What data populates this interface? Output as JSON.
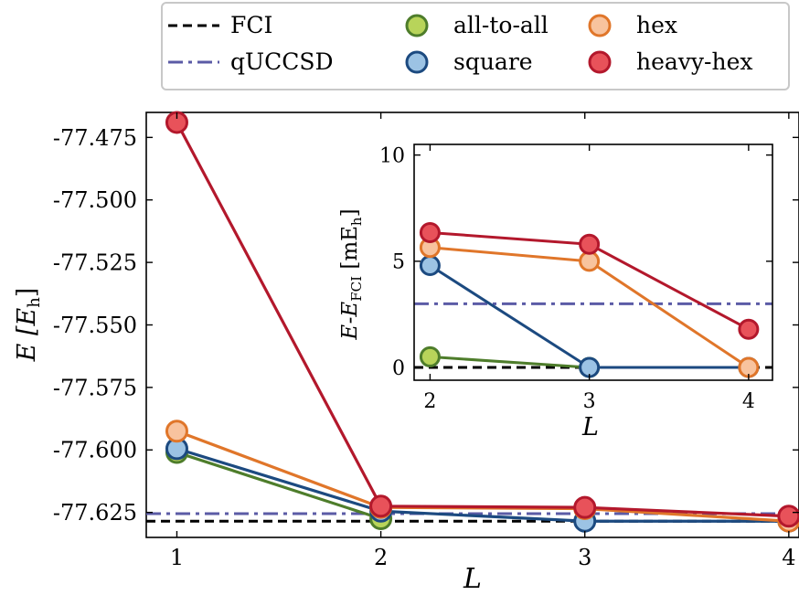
{
  "chart_data": [
    {
      "id": "main",
      "type": "line",
      "x": [
        1,
        2,
        3,
        4
      ],
      "xticks": [
        "1",
        "2",
        "3",
        "4"
      ],
      "yticks": [
        "-77.475",
        "-77.500",
        "-77.525",
        "-77.550",
        "-77.575",
        "-77.600",
        "-77.625"
      ],
      "xlabel": "L",
      "ylabel": "E [E",
      "ylabel_sub": "h",
      "ylabel_close": "]",
      "xlim": [
        0.85,
        4.05
      ],
      "ylim": [
        -77.635,
        -77.465
      ],
      "reference_lines": [
        {
          "name": "FCI",
          "value": -77.6285,
          "color": "#000000",
          "style": "dashed"
        },
        {
          "name": "qUCCSD",
          "value": -77.6255,
          "color": "#5b5ba6",
          "style": "dashdot"
        }
      ],
      "series": [
        {
          "name": "all-to-all",
          "x": [
            1,
            2
          ],
          "values": [
            -77.601,
            -77.6275
          ],
          "line_color": "#4e7d2b",
          "fill": "#b8d45a"
        },
        {
          "name": "square",
          "x": [
            1,
            2,
            3,
            4
          ],
          "values": [
            -77.5995,
            -77.6245,
            -77.6285,
            -77.6285
          ],
          "line_color": "#1c4a80",
          "fill": "#9cc3e4"
        },
        {
          "name": "hex",
          "x": [
            1,
            2,
            3,
            4
          ],
          "values": [
            -77.5925,
            -77.623,
            -77.6235,
            -77.6285
          ],
          "line_color": "#e0762a",
          "fill": "#f8c39e"
        },
        {
          "name": "heavy-hex",
          "x": [
            1,
            2,
            3,
            4
          ],
          "values": [
            -77.469,
            -77.6225,
            -77.623,
            -77.6265
          ],
          "line_color": "#b3182c",
          "fill": "#e8525a"
        }
      ],
      "grid": false
    },
    {
      "id": "inset",
      "type": "line",
      "x": [
        2,
        3,
        4
      ],
      "xticks": [
        "2",
        "3",
        "4"
      ],
      "yticks": [
        "0",
        "5",
        "10"
      ],
      "xlabel": "L",
      "ylabel": "E-E",
      "ylabel_sub": "FCI",
      "ylabel_rest": " [mE",
      "ylabel_sub2": "h",
      "ylabel_close": "]",
      "xlim": [
        1.9,
        4.15
      ],
      "ylim": [
        -0.6,
        10.5
      ],
      "reference_lines": [
        {
          "name": "FCI",
          "value": 0,
          "color": "#000000",
          "style": "dashed"
        },
        {
          "name": "qUCCSD",
          "value": 3.0,
          "color": "#5b5ba6",
          "style": "dashdot"
        }
      ],
      "series": [
        {
          "name": "all-to-all",
          "x": [
            2,
            3
          ],
          "values": [
            0.5,
            0.0
          ],
          "line_color": "#4e7d2b",
          "fill": "#b8d45a"
        },
        {
          "name": "square",
          "x": [
            2,
            3,
            4
          ],
          "values": [
            4.8,
            0.0,
            0.0
          ],
          "line_color": "#1c4a80",
          "fill": "#9cc3e4"
        },
        {
          "name": "hex",
          "x": [
            2,
            3,
            4
          ],
          "values": [
            5.65,
            5.0,
            0.0
          ],
          "line_color": "#e0762a",
          "fill": "#f8c39e"
        },
        {
          "name": "heavy-hex",
          "x": [
            2,
            3,
            4
          ],
          "values": [
            6.35,
            5.8,
            1.8
          ],
          "line_color": "#b3182c",
          "fill": "#e8525a"
        }
      ],
      "grid": false
    }
  ],
  "legend": {
    "placement": "top-center",
    "items": [
      {
        "label": "FCI",
        "kind": "line",
        "style": "dashed",
        "color": "#000000"
      },
      {
        "label": "all-to-all",
        "kind": "marker",
        "line_color": "#4e7d2b",
        "fill": "#b8d45a"
      },
      {
        "label": "hex",
        "kind": "marker",
        "line_color": "#e0762a",
        "fill": "#f8c39e"
      },
      {
        "label": "qUCCSD",
        "kind": "line",
        "style": "dashdot",
        "color": "#5b5ba6"
      },
      {
        "label": "square",
        "kind": "marker",
        "line_color": "#1c4a80",
        "fill": "#9cc3e4"
      },
      {
        "label": "heavy-hex",
        "kind": "marker",
        "line_color": "#b3182c",
        "fill": "#e8525a"
      }
    ]
  }
}
